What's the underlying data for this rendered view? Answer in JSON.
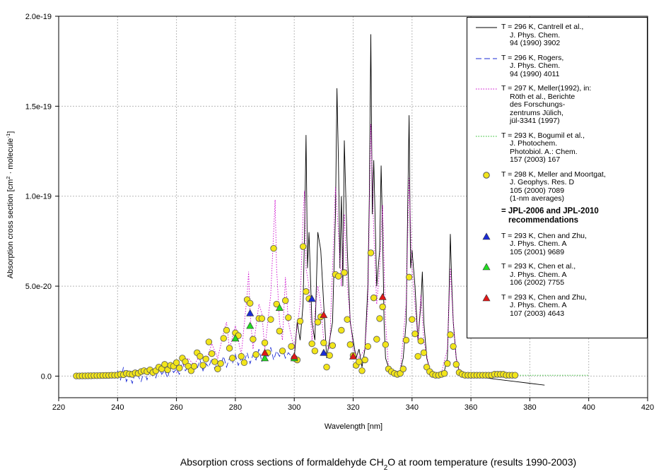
{
  "chart_data": {
    "type": "line",
    "title": [
      "Absorption cross sections of formaldehyde CH",
      "2",
      "O at room temperature (results 1990-2003)"
    ],
    "y_label": [
      "Absorption cross section [cm",
      "2",
      " · molecule",
      "-1",
      "]"
    ],
    "x_label": "Wavelength [nm]",
    "xlim": [
      220,
      420
    ],
    "xticks": [
      220,
      240,
      260,
      280,
      300,
      320,
      340,
      360,
      380,
      400,
      420
    ],
    "ylim": [
      -1.2e-20,
      2e-19
    ],
    "yticks": [
      {
        "value": 0,
        "label": "0.0"
      },
      {
        "value": 5e-20,
        "label": "5.0e-20"
      },
      {
        "value": 1e-19,
        "label": "1.0e-19"
      },
      {
        "value": 1.5e-19,
        "label": "1.5e-19"
      },
      {
        "value": 2e-19,
        "label": "2.0e-19"
      }
    ],
    "grid": true,
    "legend": "upper right",
    "legend_note": "= JPL-2006 and JPL-2010\nrecommendations",
    "series": [
      {
        "name": "T = 296 K, Cantrell et al.,\nJ. Phys. Chem.\n94 (1990) 3902",
        "color": "#000000",
        "style": "solid",
        "x": [
          300,
          301,
          302,
          303,
          303.5,
          304,
          304.5,
          305,
          306,
          307,
          308,
          309,
          310,
          311,
          312,
          313,
          314,
          314.5,
          315,
          315.5,
          316,
          316.5,
          317,
          318,
          319,
          320,
          321,
          322,
          323,
          324,
          325,
          325.5,
          326,
          326.5,
          327,
          328,
          329,
          329.5,
          330,
          330.5,
          331,
          332,
          333,
          334,
          335,
          336,
          337,
          338,
          338.5,
          339,
          339.5,
          340,
          341,
          342,
          343,
          343.5,
          344,
          345,
          346,
          347,
          348,
          350,
          351,
          352,
          352.5,
          353,
          353.5,
          354,
          355,
          356,
          358,
          360,
          365,
          370,
          375,
          380,
          385
        ],
        "values": [
          1e-20,
          3e-20,
          2e-20,
          4e-20,
          8e-20,
          1.34e-19,
          6e-20,
          8e-20,
          3e-20,
          2e-20,
          8e-20,
          7e-20,
          4e-20,
          1e-20,
          2e-20,
          3e-20,
          9e-20,
          1.6e-19,
          1.2e-19,
          6e-20,
          1e-19,
          5e-20,
          1.31e-19,
          7e-20,
          3e-20,
          2e-20,
          1e-20,
          1.5e-20,
          5e-21,
          1.5e-20,
          5e-20,
          1e-19,
          1.9e-19,
          9e-20,
          1.2e-19,
          5e-20,
          7e-20,
          1.17e-19,
          8e-20,
          3e-20,
          1e-20,
          5e-21,
          3e-21,
          2e-21,
          2e-21,
          3e-21,
          1e-20,
          3e-20,
          9e-20,
          1.45e-19,
          6e-20,
          7e-20,
          5e-20,
          2e-20,
          4e-20,
          5.8e-20,
          3e-20,
          1e-20,
          4e-21,
          2e-21,
          1e-21,
          1e-21,
          3e-21,
          1e-20,
          4e-20,
          7.9e-20,
          5e-20,
          3e-20,
          1e-20,
          3e-21,
          1e-21,
          0,
          -1e-21,
          -2e-21,
          -3e-21,
          -4e-21,
          -5e-21
        ]
      },
      {
        "name": "T = 296 K, Rogers,\nJ. Phys. Chem.\n94 (1990) 4011",
        "color": "#1a2bd6",
        "style": "dashed",
        "x": [
          240,
          241,
          242,
          243,
          244,
          245,
          246,
          247,
          248,
          249,
          250,
          251,
          252,
          253,
          254,
          255,
          256,
          257,
          258,
          259,
          260,
          261,
          262,
          263,
          264,
          265,
          266,
          267,
          268,
          269,
          270,
          271,
          272,
          273,
          274,
          275,
          276,
          277,
          278,
          279,
          280,
          281,
          282,
          283,
          284,
          285,
          286,
          287,
          288,
          289,
          290,
          291,
          292,
          293,
          294,
          295,
          296,
          297,
          298,
          299,
          300
        ],
        "values": [
          3e-21,
          -2e-21,
          5e-21,
          -3e-21,
          1e-21,
          -4e-21,
          2e-21,
          0,
          -3e-21,
          3e-21,
          -2e-21,
          4e-21,
          0,
          -1e-21,
          5e-21,
          1e-21,
          3e-21,
          -1e-21,
          6e-21,
          2e-21,
          4e-21,
          1e-21,
          8e-21,
          3e-21,
          5e-21,
          2e-21,
          6e-21,
          4e-21,
          9e-21,
          3e-21,
          7e-21,
          5e-21,
          1e-20,
          4e-21,
          8e-21,
          6e-21,
          1.1e-20,
          5e-21,
          1e-20,
          7e-21,
          1.2e-20,
          6e-21,
          1e-20,
          8e-21,
          1.3e-20,
          7e-21,
          1.2e-20,
          9e-21,
          1.5e-20,
          8e-21,
          1.3e-20,
          1e-20,
          1.6e-20,
          9e-21,
          1.4e-20,
          1.1e-20,
          1.5e-20,
          1e-20,
          1.3e-20,
          1.1e-20,
          1.2e-20
        ]
      },
      {
        "name": "T = 297 K, Meller(1992), in:\nRöth et al., Berichte\ndes Forschungs-\nzentrums Jülich,\njül-3341 (1997)",
        "color": "#cc00cc",
        "style": "dotted",
        "x": [
          260,
          262,
          264,
          266,
          268,
          270,
          272,
          274,
          276,
          277,
          278,
          280,
          282,
          284,
          284.5,
          285,
          286,
          288,
          289,
          290,
          292,
          293,
          293.5,
          294,
          295,
          296,
          297,
          298,
          300,
          302,
          303,
          303.5,
          304,
          305,
          306,
          308,
          309,
          310,
          312,
          314,
          315,
          316,
          317,
          318,
          320,
          322,
          324,
          325,
          326,
          327,
          328,
          329,
          330,
          331,
          332,
          334,
          336,
          338,
          339,
          340,
          341,
          342,
          343,
          344,
          346,
          348,
          350,
          352,
          353,
          354,
          355,
          356,
          358,
          360
        ],
        "values": [
          2e-21,
          5e-21,
          1e-20,
          6e-21,
          1.2e-20,
          8e-21,
          1.8e-20,
          1e-20,
          2.4e-20,
          3e-20,
          1.5e-20,
          2.8e-20,
          1.2e-20,
          4.5e-20,
          5.8e-20,
          3.5e-20,
          1.5e-20,
          4e-20,
          3.5e-20,
          1.5e-20,
          4.5e-20,
          8e-20,
          9.8e-20,
          6e-20,
          3e-20,
          2e-20,
          5.5e-20,
          3e-20,
          1.5e-20,
          4e-20,
          9e-20,
          1.03e-19,
          6e-20,
          5e-20,
          2e-20,
          5e-20,
          4e-20,
          2e-20,
          1.5e-20,
          1.05e-19,
          8e-20,
          5e-20,
          9e-20,
          5e-20,
          1.5e-20,
          1e-20,
          1.5e-20,
          4e-20,
          1.4e-19,
          8e-20,
          4e-20,
          6e-20,
          9.5e-20,
          3e-20,
          5e-21,
          2e-21,
          3e-21,
          4e-20,
          1.1e-19,
          6e-20,
          4e-20,
          2e-20,
          4.5e-20,
          2e-20,
          3e-21,
          1e-21,
          2e-21,
          1.5e-20,
          6e-20,
          3e-20,
          1e-20,
          2e-21,
          1e-21,
          0
        ]
      },
      {
        "name": "T = 293 K, Bogumil et al.,\nJ. Photochem.\nPhotobiol. A.: Chem.\n157 (2003) 167",
        "color": "#22bb22",
        "style": "dotted",
        "x": [
          375,
          380,
          385,
          390,
          395,
          400
        ],
        "values": [
          5e-22,
          5e-22,
          5e-22,
          5e-22,
          5e-22,
          5e-22
        ]
      },
      {
        "name": "T = 298 K, Meller and Moortgat,\nJ. Geophys. Res. D\n105 (2000) 7089\n(1-nm averages)",
        "color": "#f2e51a",
        "marker": "circle",
        "x": [
          226,
          227,
          228,
          229,
          230,
          231,
          232,
          233,
          234,
          235,
          236,
          237,
          238,
          239,
          240,
          241,
          242,
          243,
          244,
          245,
          246,
          247,
          248,
          249,
          250,
          251,
          252,
          253,
          254,
          255,
          256,
          257,
          258,
          259,
          260,
          261,
          262,
          263,
          264,
          265,
          266,
          267,
          268,
          269,
          270,
          271,
          272,
          273,
          274,
          275,
          276,
          277,
          278,
          279,
          280,
          281,
          282,
          283,
          284,
          285,
          286,
          287,
          288,
          289,
          290,
          291,
          292,
          293,
          294,
          295,
          296,
          297,
          298,
          299,
          300,
          301,
          302,
          303,
          304,
          305,
          306,
          307,
          308,
          309,
          310,
          311,
          312,
          313,
          314,
          315,
          316,
          317,
          318,
          319,
          320,
          321,
          322,
          323,
          324,
          325,
          326,
          327,
          328,
          329,
          330,
          331,
          332,
          333,
          334,
          335,
          336,
          337,
          338,
          339,
          340,
          341,
          342,
          343,
          344,
          345,
          346,
          347,
          348,
          349,
          350,
          351,
          352,
          353,
          354,
          355,
          356,
          357,
          358,
          359,
          360,
          361,
          362,
          363,
          364,
          365,
          366,
          367,
          368,
          369,
          370,
          371,
          372,
          373,
          374,
          375
        ],
        "values": [
          1e-22,
          1e-22,
          1.5e-22,
          1.5e-22,
          2e-22,
          2e-22,
          2.5e-22,
          2.5e-22,
          3e-22,
          3.5e-22,
          4e-22,
          4e-22,
          5e-22,
          5e-22,
          6e-22,
          1e-21,
          8e-22,
          1.5e-21,
          1.2e-21,
          1e-21,
          1.8e-21,
          1.5e-21,
          2.5e-21,
          3e-21,
          2.5e-21,
          3.5e-21,
          2e-21,
          3e-21,
          5e-21,
          4e-21,
          6.5e-21,
          3.5e-21,
          6e-21,
          5.5e-21,
          7.5e-21,
          4.5e-21,
          1e-20,
          8e-21,
          5.5e-21,
          3e-21,
          5.5e-21,
          1.3e-20,
          1.1e-20,
          6e-21,
          9.5e-21,
          1.9e-20,
          1.25e-20,
          8e-21,
          4e-21,
          7e-21,
          2.1e-20,
          2.55e-20,
          1.55e-20,
          1e-20,
          2.4e-20,
          2.25e-20,
          1.1e-20,
          7.5e-21,
          4.25e-20,
          4.05e-20,
          2.05e-20,
          1.2e-20,
          3.2e-20,
          3.2e-20,
          1.85e-20,
          1.3e-20,
          3.15e-20,
          7.1e-20,
          4e-20,
          2.5e-20,
          1.4e-20,
          4.2e-20,
          3.25e-20,
          1.65e-20,
          1e-20,
          9e-21,
          3.05e-20,
          7.2e-20,
          4.7e-20,
          4.3e-20,
          1.8e-20,
          1.4e-20,
          3e-20,
          3.3e-20,
          1.85e-20,
          5e-21,
          1.15e-20,
          1.7e-20,
          5.65e-20,
          5.55e-20,
          2.55e-20,
          5.75e-20,
          3.15e-20,
          1.75e-20,
          1.15e-20,
          6e-21,
          8e-21,
          3e-21,
          9e-21,
          1.65e-20,
          6.85e-20,
          4.35e-20,
          2.05e-20,
          3.2e-20,
          3.85e-20,
          1.75e-20,
          4e-21,
          2.5e-21,
          1.5e-21,
          1e-21,
          1.5e-21,
          4e-21,
          2e-20,
          5.5e-20,
          3.15e-20,
          2.35e-20,
          1.1e-20,
          1.95e-20,
          1.3e-20,
          5e-21,
          2.5e-21,
          1e-21,
          5e-22,
          5e-22,
          1e-21,
          1.5e-21,
          7e-21,
          2.3e-20,
          1.65e-20,
          6.5e-21,
          2e-21,
          1e-21,
          5e-22,
          5e-22,
          5e-22,
          5e-22,
          5e-22,
          5e-22,
          5e-22,
          5e-22,
          5e-22,
          5e-22,
          1e-21,
          1e-21,
          1e-21,
          1e-21,
          5e-22,
          5e-22,
          5e-22,
          5e-22
        ]
      },
      {
        "name": "T = 293 K, Chen and Zhu,\nJ. Phys. Chem. A\n105 (2001) 9689",
        "color": "#1a2bd6",
        "marker": "triangle",
        "x": [
          285,
          306,
          310
        ],
        "values": [
          3.5e-20,
          4.3e-20,
          1.3e-20
        ]
      },
      {
        "name": "T = 293 K, Chen et al.,\nJ. Phys. Chem. A\n106 (2002) 7755",
        "color": "#22dd22",
        "marker": "triangle",
        "x": [
          280,
          285,
          290,
          295,
          300
        ],
        "values": [
          2.1e-20,
          2.8e-20,
          1e-20,
          3.8e-20,
          1e-20
        ]
      },
      {
        "name": "T = 293 K, Chen and Zhu,\nJ. Phys. Chem. A\n107 (2003) 4643",
        "color": "#e01818",
        "marker": "triangle",
        "x": [
          290,
          300,
          310,
          320,
          330
        ],
        "values": [
          1.3e-20,
          1.1e-20,
          3.4e-20,
          1.1e-20,
          4.4e-20
        ]
      }
    ]
  }
}
